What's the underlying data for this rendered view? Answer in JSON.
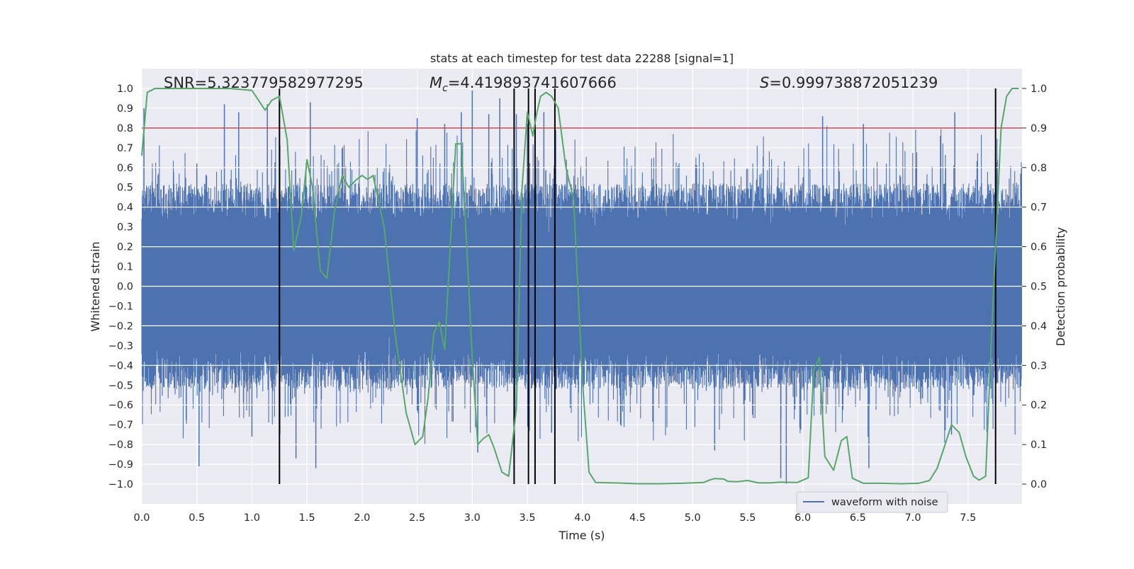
{
  "chart_data": {
    "type": "line",
    "title": "stats at each timestep for test data 22288 [signal=1]",
    "xlabel": "Time (s)",
    "ylabel": "Whitened strain",
    "y2label": "Detection probability",
    "xlim": [
      0.0,
      7.99
    ],
    "ylim": [
      -1.1,
      1.1
    ],
    "y2lim": [
      -0.05,
      1.05
    ],
    "x_ticks": [
      "0.0",
      "0.5",
      "1.0",
      "1.5",
      "2.0",
      "2.5",
      "3.0",
      "3.5",
      "4.0",
      "4.5",
      "5.0",
      "5.5",
      "6.0",
      "6.5",
      "7.0",
      "7.5"
    ],
    "y_ticks": [
      "1.0",
      "0.9",
      "0.8",
      "0.7",
      "0.6",
      "0.5",
      "0.4",
      "0.3",
      "0.2",
      "0.1",
      "0.0",
      "−0.1",
      "−0.2",
      "−0.3",
      "−0.4",
      "−0.5",
      "−0.6",
      "−0.7",
      "−0.8",
      "−0.9",
      "−1.0"
    ],
    "y2_ticks": [
      "1.0",
      "0.9",
      "0.8",
      "0.7",
      "0.6",
      "0.5",
      "0.4",
      "0.3",
      "0.2",
      "0.1",
      "0.0"
    ],
    "annotations": {
      "snr": "SNR=5.323779582977295",
      "mc_symbol": "M",
      "mc_sub": "c",
      "mc_value": "=4.419893741607666",
      "s_symbol": "S",
      "s_value": "=0.999738872051239"
    },
    "threshold": 0.9,
    "vertical_lines_x": [
      1.25,
      3.38,
      3.51,
      3.57,
      3.75,
      7.75
    ],
    "legend": {
      "label": "waveform with noise",
      "placement": "lower right"
    },
    "series": [
      {
        "name": "waveform with noise",
        "axis": "left",
        "color": "#4c72b0",
        "envelope_typical": 0.4,
        "spikes": [
          [
            0.02,
            0.9
          ],
          [
            0.5,
            0.62
          ],
          [
            0.52,
            -0.91
          ],
          [
            0.75,
            0.92
          ],
          [
            0.88,
            0.88
          ],
          [
            1.0,
            -0.76
          ],
          [
            1.14,
            0.92
          ],
          [
            1.25,
            0.95
          ],
          [
            1.53,
            0.93
          ],
          [
            1.58,
            -0.92
          ],
          [
            1.4,
            -0.87
          ],
          [
            2.5,
            0.85
          ],
          [
            2.75,
            0.82
          ],
          [
            2.9,
            0.88
          ],
          [
            3.0,
            0.99
          ],
          [
            3.05,
            -0.84
          ],
          [
            3.15,
            0.87
          ],
          [
            3.25,
            0.95
          ],
          [
            3.4,
            0.87
          ],
          [
            3.5,
            0.82
          ],
          [
            3.65,
            0.88
          ],
          [
            3.72,
            -0.74
          ],
          [
            5.2,
            -0.83
          ],
          [
            5.8,
            -0.97
          ],
          [
            5.85,
            -1.0
          ],
          [
            6.18,
            0.86
          ],
          [
            6.55,
            0.82
          ],
          [
            6.6,
            -0.92
          ],
          [
            7.25,
            0.76
          ],
          [
            7.35,
            -0.75
          ],
          [
            7.38,
            0.88
          ]
        ]
      },
      {
        "name": "detection probability",
        "axis": "right",
        "color": "#55a868",
        "x": [
          0.0,
          0.05,
          0.12,
          0.3,
          0.6,
          0.8,
          1.0,
          1.12,
          1.18,
          1.25,
          1.32,
          1.38,
          1.45,
          1.5,
          1.55,
          1.62,
          1.68,
          1.75,
          1.82,
          1.88,
          1.95,
          2.0,
          2.05,
          2.1,
          2.2,
          2.3,
          2.4,
          2.48,
          2.55,
          2.6,
          2.65,
          2.7,
          2.75,
          2.8,
          2.85,
          2.9,
          2.95,
          3.0,
          3.05,
          3.1,
          3.15,
          3.2,
          3.27,
          3.33,
          3.4,
          3.45,
          3.5,
          3.55,
          3.58,
          3.62,
          3.67,
          3.72,
          3.78,
          3.85,
          3.92,
          4.0,
          4.06,
          4.12,
          4.3,
          4.5,
          4.7,
          4.9,
          5.1,
          5.15,
          5.2,
          5.28,
          5.32,
          5.4,
          5.5,
          5.6,
          5.7,
          5.8,
          5.95,
          6.05,
          6.1,
          6.15,
          6.2,
          6.28,
          6.35,
          6.4,
          6.45,
          6.55,
          6.7,
          6.9,
          7.05,
          7.15,
          7.22,
          7.28,
          7.35,
          7.42,
          7.48,
          7.55,
          7.6,
          7.66,
          7.72,
          7.8,
          7.85,
          7.9,
          7.96
        ],
        "y": [
          0.83,
          0.99,
          1.0,
          1.0,
          1.0,
          1.0,
          0.995,
          0.945,
          0.97,
          0.98,
          0.87,
          0.59,
          0.68,
          0.82,
          0.75,
          0.54,
          0.52,
          0.69,
          0.78,
          0.75,
          0.77,
          0.78,
          0.77,
          0.78,
          0.65,
          0.38,
          0.18,
          0.1,
          0.12,
          0.22,
          0.38,
          0.41,
          0.34,
          0.6,
          0.86,
          0.86,
          0.6,
          0.32,
          0.1,
          0.115,
          0.125,
          0.09,
          0.03,
          0.02,
          0.19,
          0.74,
          0.94,
          0.88,
          0.93,
          0.98,
          0.99,
          0.98,
          0.95,
          0.8,
          0.72,
          0.26,
          0.03,
          0.004,
          0.003,
          0.001,
          0.001,
          0.002,
          0.004,
          0.01,
          0.014,
          0.013,
          0.007,
          0.006,
          0.009,
          0.003,
          0.003,
          0.005,
          0.004,
          0.016,
          0.29,
          0.32,
          0.07,
          0.035,
          0.11,
          0.12,
          0.015,
          0.002,
          0.002,
          0.001,
          0.002,
          0.009,
          0.04,
          0.09,
          0.15,
          0.13,
          0.07,
          0.02,
          0.01,
          0.02,
          0.42,
          0.9,
          0.98,
          1.0,
          1.0
        ]
      }
    ]
  }
}
